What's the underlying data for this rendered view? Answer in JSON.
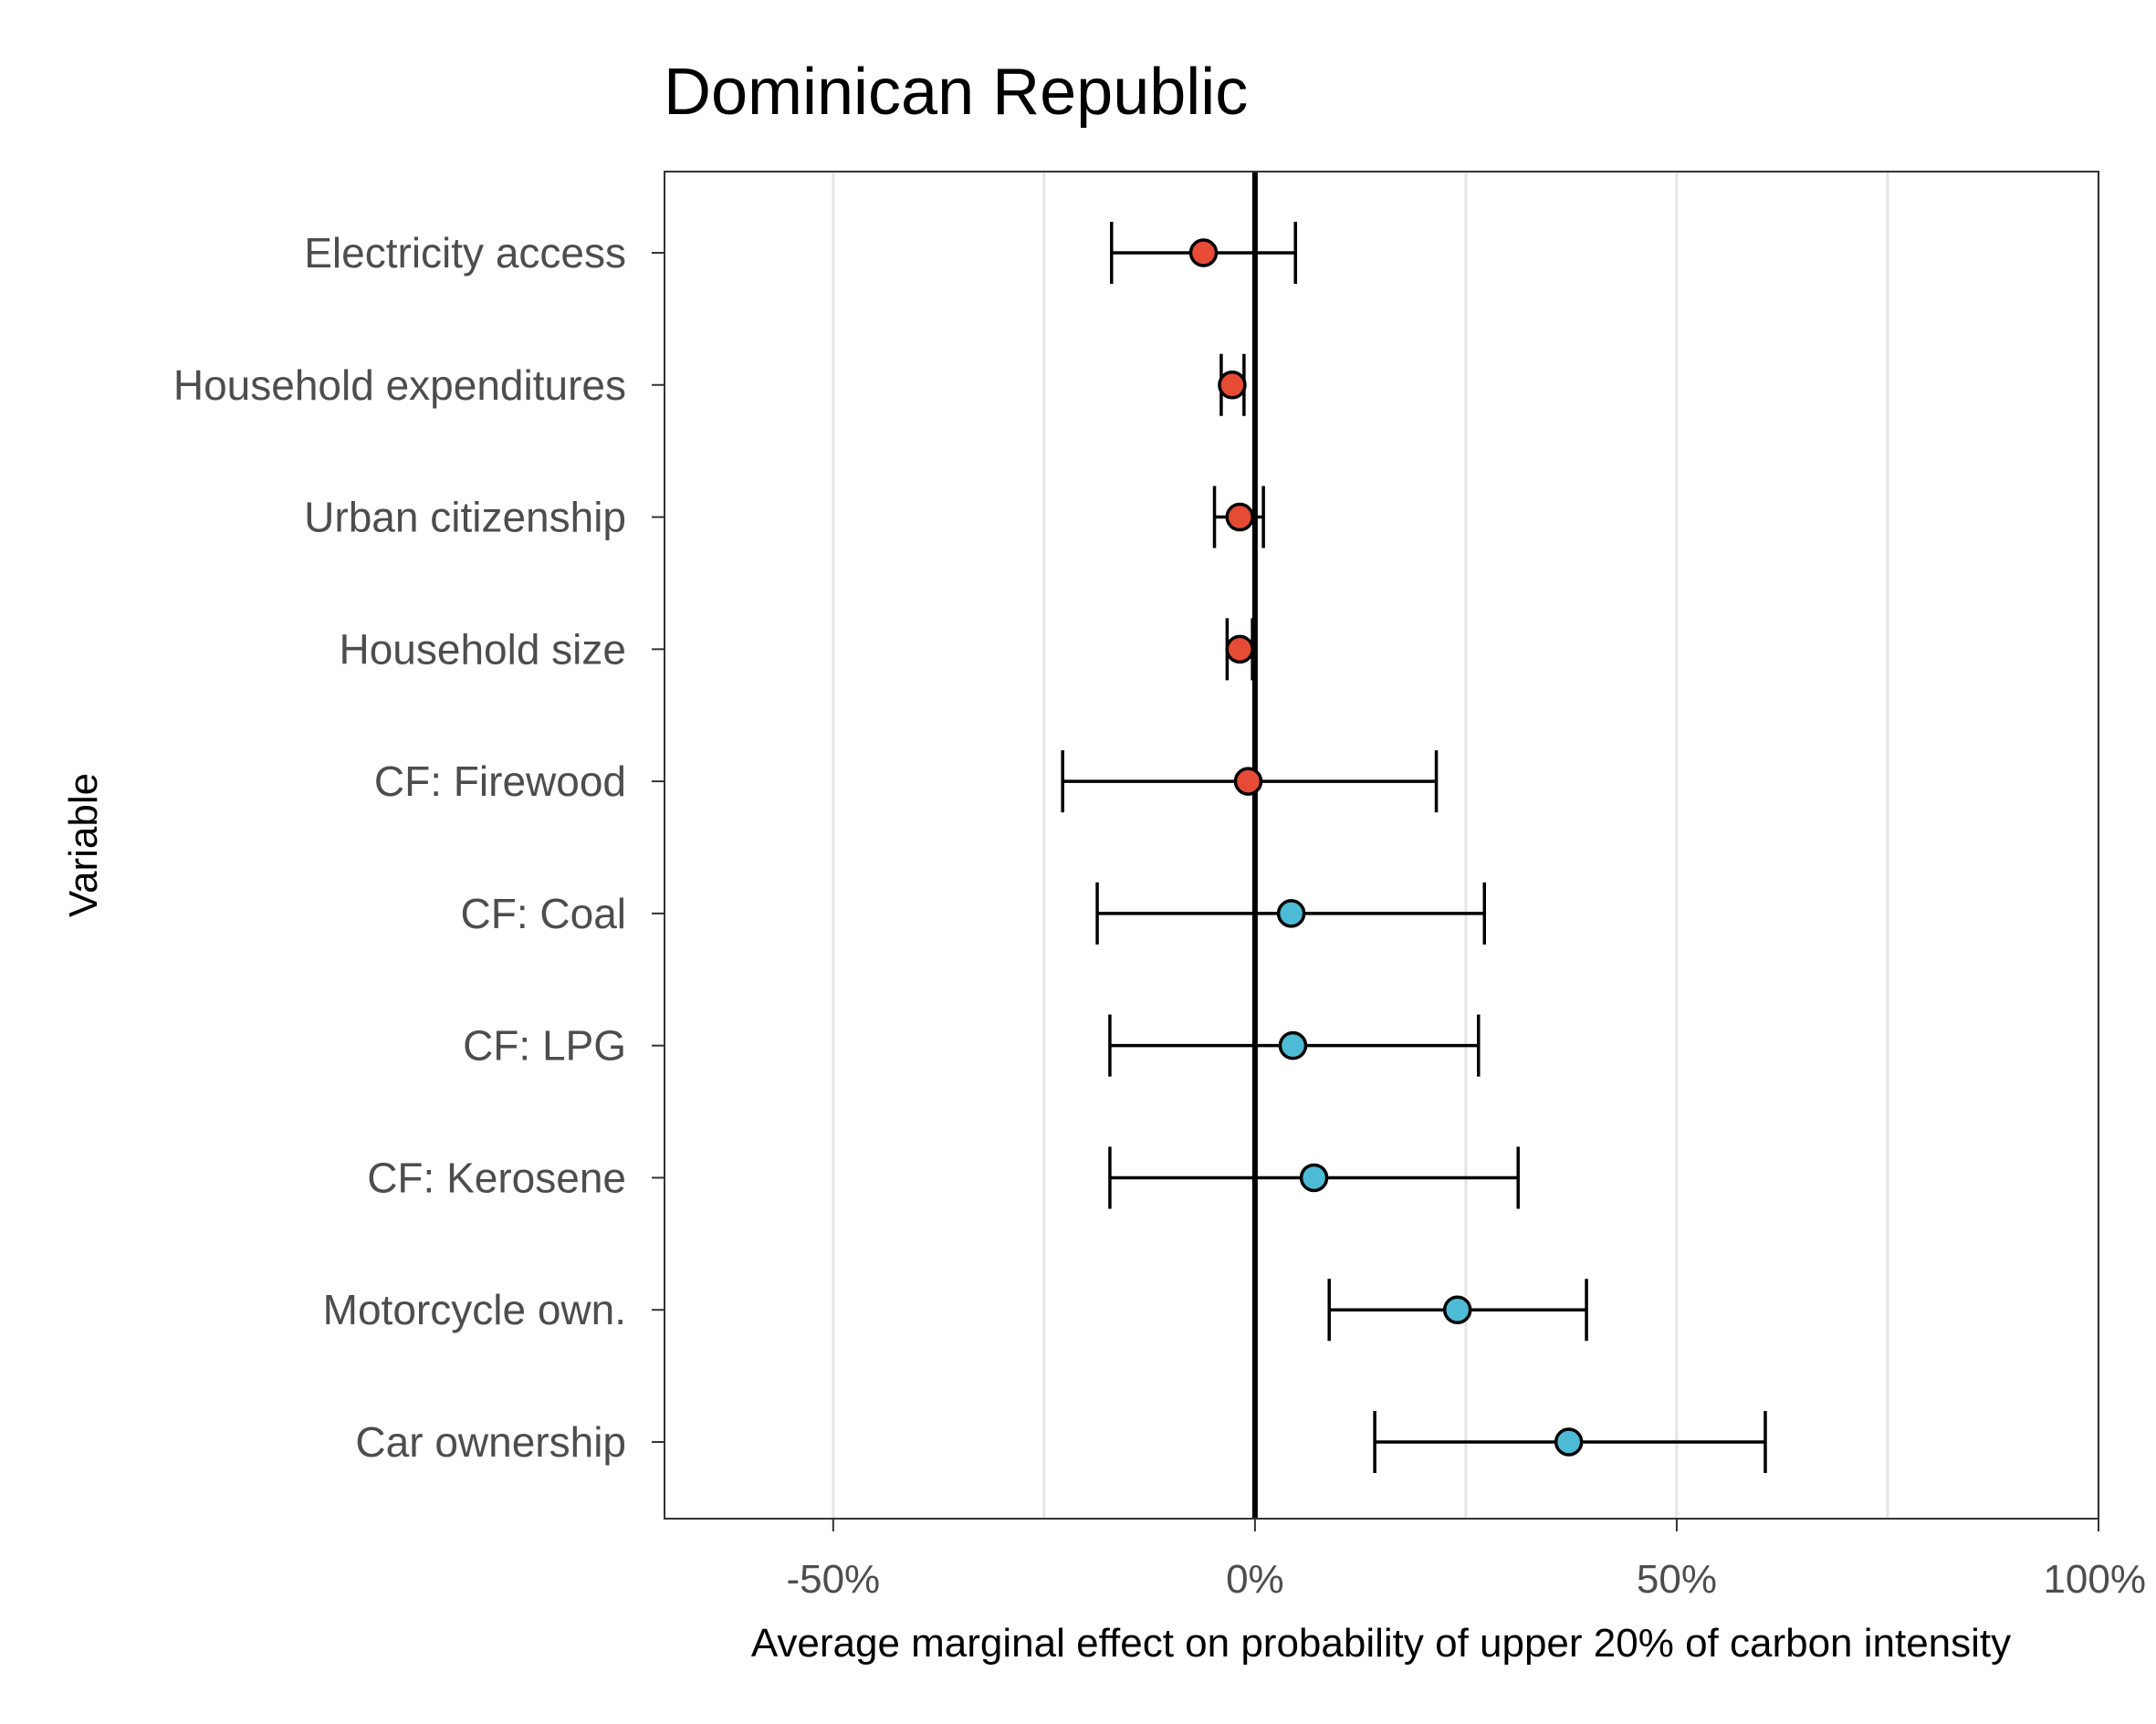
{
  "chart_data": {
    "type": "scatter",
    "subtype": "coefficient-plot-with-error-bars",
    "title": "Dominican Republic",
    "xlabel": "Average marginal effect on probability of upper 20% of carbon intensity",
    "ylabel": "Variable",
    "xlim": [
      -0.7,
      1.0
    ],
    "xticks": [
      {
        "value": -0.5,
        "label": "-50%"
      },
      {
        "value": 0.0,
        "label": "0%"
      },
      {
        "value": 0.5,
        "label": "50%"
      },
      {
        "value": 1.0,
        "label": "100%"
      }
    ],
    "minor_gridlines": [
      -0.25,
      0.25,
      0.75
    ],
    "grid": "vertical",
    "reference_line": 0,
    "colors": {
      "negative": "#e64b35",
      "positive": "#4dbbd5"
    },
    "categories": [
      "Electricity access",
      "Household expenditures",
      "Urban citizenship",
      "Household size",
      "CF: Firewood",
      "CF: Coal",
      "CF: LPG",
      "CF: Kerosene",
      "Motorcycle own.",
      "Car ownership"
    ],
    "estimates": [
      -0.061,
      -0.027,
      -0.018,
      -0.018,
      -0.008,
      0.043,
      0.045,
      0.07,
      0.24,
      0.372
    ],
    "lower": [
      -0.17,
      -0.04,
      -0.048,
      -0.033,
      -0.228,
      -0.187,
      -0.172,
      -0.172,
      0.088,
      0.142
    ],
    "upper": [
      0.048,
      -0.013,
      0.01,
      -0.003,
      0.215,
      0.272,
      0.265,
      0.312,
      0.393,
      0.605
    ]
  }
}
